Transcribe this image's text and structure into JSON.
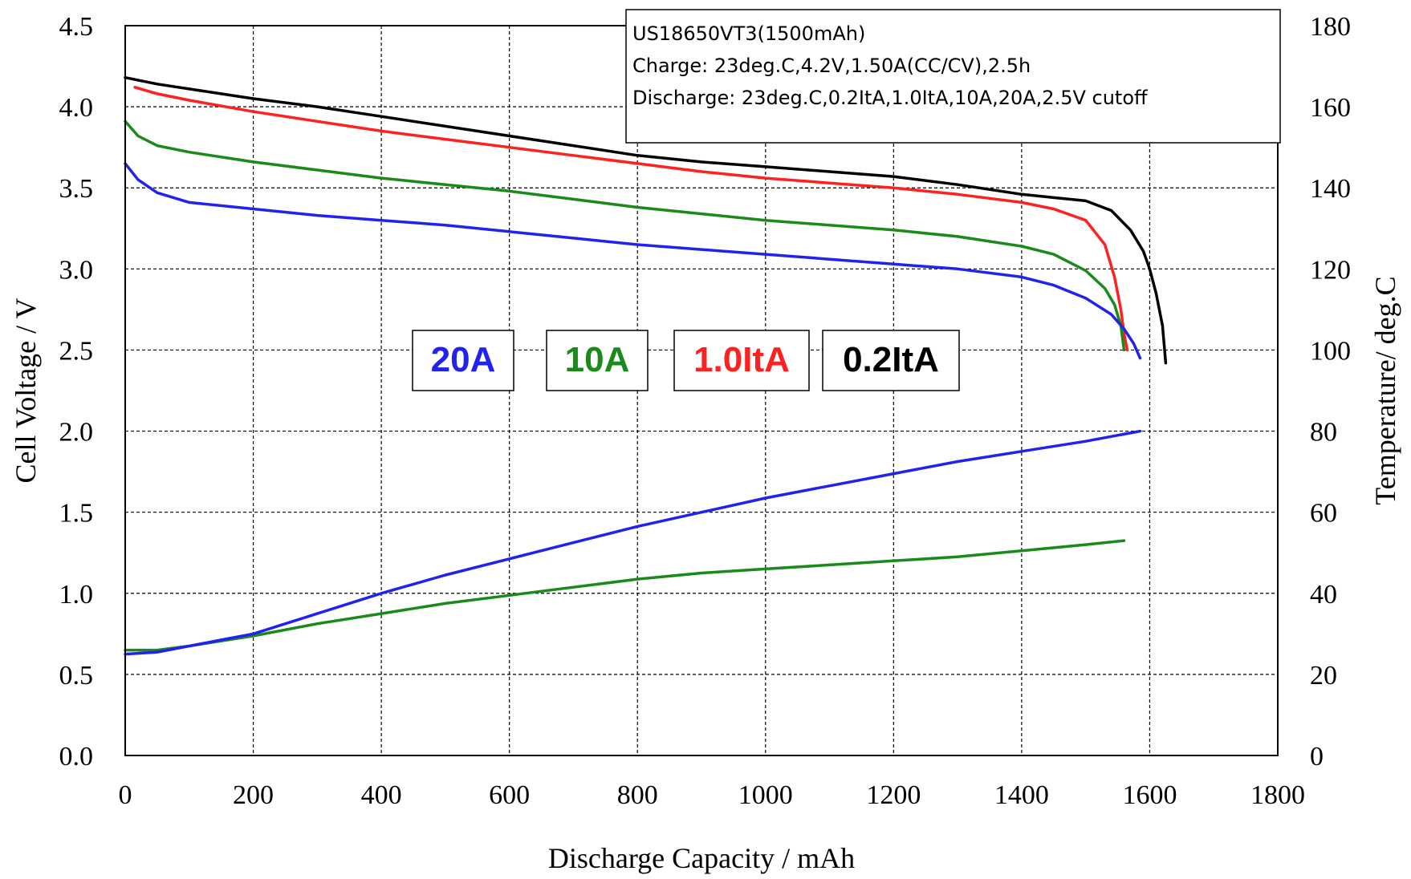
{
  "chart_data": {
    "type": "line",
    "xlabel": "Discharge Capacity / mAh",
    "ylabel": "Cell Voltage / V",
    "y2label": "Temperature/ deg.C",
    "xlim": [
      0,
      1800
    ],
    "ylim": [
      0,
      4.5
    ],
    "y2lim": [
      0,
      180
    ],
    "x_ticks": [
      "0",
      "200",
      "400",
      "600",
      "800",
      "1000",
      "1200",
      "1400",
      "1600",
      "1800"
    ],
    "y_ticks": [
      "0.0",
      "0.5",
      "1.0",
      "1.5",
      "2.0",
      "2.5",
      "3.0",
      "3.5",
      "4.0",
      "4.5"
    ],
    "y2_ticks": [
      "0",
      "20",
      "40",
      "60",
      "80",
      "100",
      "120",
      "140",
      "160",
      "180"
    ],
    "grid": true,
    "info_box": {
      "lines": [
        "US18650VT3(1500mAh)",
        "Charge: 23deg.C,4.2V,1.50A(CC/CV),2.5h",
        "Discharge: 23deg.C,0.2ItA,1.0ItA,10A,20A,2.5V cutoff"
      ]
    },
    "series_labels": [
      {
        "text": "20A",
        "color": "#2222ee"
      },
      {
        "text": "10A",
        "color": "#1a8a1a"
      },
      {
        "text": "1.0ItA",
        "color": "#ff2020"
      },
      {
        "text": "0.2ItA",
        "color": "#000000"
      }
    ],
    "series": [
      {
        "axis": "left",
        "color": "#000000",
        "x": [
          0,
          50,
          100,
          200,
          300,
          400,
          500,
          600,
          700,
          800,
          900,
          1000,
          1100,
          1200,
          1300,
          1400,
          1450,
          1500,
          1540,
          1570,
          1590,
          1600,
          1610,
          1620,
          1625
        ],
        "y": [
          4.18,
          4.14,
          4.11,
          4.05,
          4.0,
          3.94,
          3.88,
          3.82,
          3.76,
          3.7,
          3.66,
          3.63,
          3.6,
          3.57,
          3.52,
          3.46,
          3.44,
          3.42,
          3.36,
          3.24,
          3.11,
          3.0,
          2.85,
          2.65,
          2.42
        ]
      },
      {
        "axis": "left",
        "color": "#ff2020",
        "x": [
          15,
          50,
          100,
          200,
          300,
          400,
          500,
          600,
          700,
          800,
          900,
          1000,
          1100,
          1200,
          1300,
          1400,
          1450,
          1500,
          1530,
          1545,
          1555,
          1560,
          1565
        ],
        "y": [
          4.12,
          4.08,
          4.04,
          3.97,
          3.91,
          3.85,
          3.8,
          3.75,
          3.7,
          3.65,
          3.6,
          3.56,
          3.53,
          3.5,
          3.46,
          3.41,
          3.37,
          3.3,
          3.15,
          2.95,
          2.75,
          2.6,
          2.5
        ]
      },
      {
        "axis": "left",
        "color": "#1a8a1a",
        "x": [
          0,
          20,
          50,
          100,
          200,
          300,
          400,
          500,
          600,
          700,
          800,
          900,
          1000,
          1100,
          1200,
          1300,
          1400,
          1450,
          1500,
          1530,
          1545,
          1555,
          1560
        ],
        "y": [
          3.91,
          3.82,
          3.76,
          3.72,
          3.66,
          3.61,
          3.56,
          3.52,
          3.48,
          3.43,
          3.38,
          3.34,
          3.3,
          3.27,
          3.24,
          3.2,
          3.14,
          3.09,
          2.99,
          2.88,
          2.78,
          2.65,
          2.5
        ]
      },
      {
        "axis": "left",
        "color": "#2222ee",
        "x": [
          0,
          20,
          50,
          100,
          200,
          300,
          400,
          500,
          600,
          700,
          800,
          900,
          1000,
          1100,
          1200,
          1300,
          1400,
          1450,
          1500,
          1540,
          1560,
          1575,
          1585
        ],
        "y": [
          3.65,
          3.55,
          3.47,
          3.41,
          3.37,
          3.33,
          3.3,
          3.27,
          3.23,
          3.19,
          3.15,
          3.12,
          3.09,
          3.06,
          3.03,
          3.0,
          2.95,
          2.9,
          2.82,
          2.72,
          2.63,
          2.54,
          2.45
        ]
      },
      {
        "axis": "right",
        "color": "#1a8a1a",
        "x": [
          0,
          50,
          100,
          200,
          300,
          400,
          500,
          600,
          700,
          800,
          900,
          1000,
          1100,
          1200,
          1300,
          1400,
          1500,
          1560
        ],
        "y": [
          26.0,
          26.0,
          27.0,
          29.5,
          32.5,
          35.0,
          37.5,
          39.5,
          41.5,
          43.5,
          45.0,
          46.0,
          47.0,
          48.0,
          49.0,
          50.5,
          52.0,
          53.0
        ]
      },
      {
        "axis": "right",
        "color": "#2222ee",
        "x": [
          0,
          50,
          100,
          150,
          200,
          300,
          400,
          500,
          600,
          700,
          800,
          900,
          1000,
          1100,
          1200,
          1300,
          1400,
          1500,
          1585
        ],
        "y": [
          25.0,
          25.5,
          27.0,
          28.5,
          30.0,
          35.0,
          40.0,
          44.5,
          48.5,
          52.5,
          56.5,
          60.0,
          63.5,
          66.5,
          69.5,
          72.5,
          75.0,
          77.5,
          80.0
        ]
      }
    ]
  }
}
